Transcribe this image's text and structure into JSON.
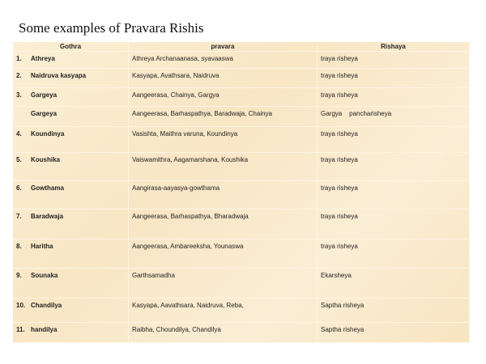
{
  "title": "Some examples of Pravara Rishis",
  "headers": [
    "Gothra",
    "pravara",
    "Rishaya"
  ],
  "rows": [
    {
      "num": "1.",
      "gothra": "Athreya",
      "pravara": "Athreya Archanaanasa, syavaaswa",
      "rishaya": "traya risheya"
    },
    {
      "num": "2.",
      "gothra": "Naidruva kasyapa",
      "pravara": "Kasyapa, Avathsara, Naidruva",
      "rishaya": "traya risheya"
    },
    {
      "num": "3.",
      "gothra": "Gargeya",
      "pravara": "Aangeerasa, Chainya, Gargya",
      "rishaya": "traya risheya"
    },
    {
      "num": "",
      "gothra": "Gargeya",
      "pravara": "Aangeerasa, Barhaspathya, Baradwaja, Chainya",
      "rishaya": "Gargya    pancharisheya"
    },
    {
      "num": "4.",
      "gothra": "Koundinya",
      "pravara": "Vasishta, Maithra varuna, Koundinya",
      "rishaya": "traya risheya"
    },
    {
      "num": "5.",
      "gothra": "Koushika",
      "pravara": "Vaiswamithra, Aagamarshana, Koushika",
      "rishaya": "traya risheya"
    },
    {
      "num": "6.",
      "gothra": "Gowthama",
      "pravara": "Aangirasa-aayasya-gowthama",
      "rishaya": "traya risheya"
    },
    {
      "num": "7.",
      "gothra": "Baradwaja",
      "pravara": "Aangeerasa, Barhaspathya, Bharadwaja",
      "rishaya": "traya risheya"
    },
    {
      "num": "8.",
      "gothra": "Haritha",
      "pravara": "Aangeerasa, Ambareeksha, Younaswa",
      "rishaya": "traya risheya"
    },
    {
      "num": "9.",
      "gothra": "Sounaka",
      "pravara": "Garthsamadha",
      "rishaya": "Ekarsheya"
    },
    {
      "num": "10.",
      "gothra": "Chandilya",
      "pravara": "Kasyapa, Aavathsara, Naidruva, Reba,",
      "rishaya": "Saptha risheya"
    },
    {
      "num": "11.",
      "gothra": "handilya",
      "pravara": "Raibha, Choundilya, Chandilya",
      "rishaya": "Saptha risheya"
    }
  ]
}
